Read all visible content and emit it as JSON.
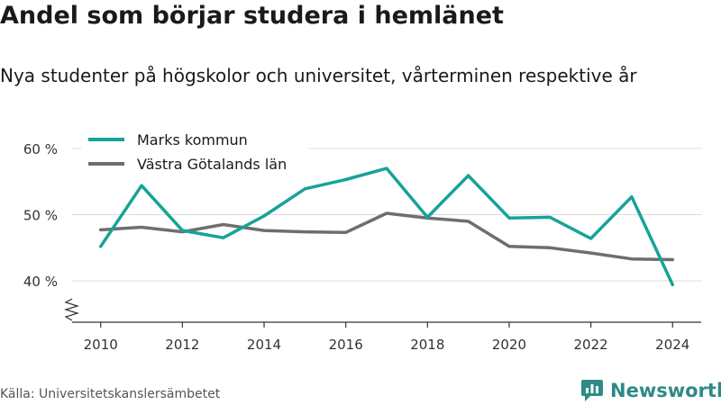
{
  "header": {
    "title": "Andel som börjar studera i hemlänet",
    "subtitle": "Nya studenter på högskolor och universitet, vårterminen respektive år"
  },
  "footer": {
    "source": "Källa: Universitetskanslersämbetet",
    "brand": "Newsworthy"
  },
  "colors": {
    "marks": "#17a397",
    "vastra": "#6e6e6e",
    "grid": "#dcdcdc",
    "axis": "#333333",
    "brand": "#2e8b87"
  },
  "chart_data": {
    "type": "line",
    "x": [
      2010,
      2011,
      2012,
      2013,
      2014,
      2015,
      2016,
      2017,
      2018,
      2019,
      2020,
      2021,
      2022,
      2023,
      2024
    ],
    "series": [
      {
        "name": "Marks kommun",
        "values": [
          45.2,
          54.4,
          47.6,
          46.5,
          49.8,
          53.9,
          55.3,
          57.0,
          49.6,
          55.9,
          49.5,
          49.6,
          46.4,
          52.7,
          39.4
        ]
      },
      {
        "name": "Västra Götalands län",
        "values": [
          47.7,
          48.1,
          47.4,
          48.5,
          47.6,
          47.4,
          47.3,
          50.2,
          49.5,
          49.0,
          45.2,
          45.0,
          44.2,
          43.3,
          43.2
        ]
      }
    ],
    "yticks": [
      40,
      50,
      60
    ],
    "ytick_labels": [
      "40 %",
      "50 %",
      "60 %"
    ],
    "xticks": [
      2010,
      2012,
      2014,
      2016,
      2018,
      2020,
      2022,
      2024
    ],
    "xtick_labels": [
      "2010",
      "2012",
      "2014",
      "2016",
      "2018",
      "2020",
      "2022",
      "2024"
    ],
    "ylim": [
      38,
      60
    ],
    "xlim": [
      2009.3,
      2024.7
    ],
    "grid": true,
    "axis_break": true,
    "legend": "top-left"
  }
}
